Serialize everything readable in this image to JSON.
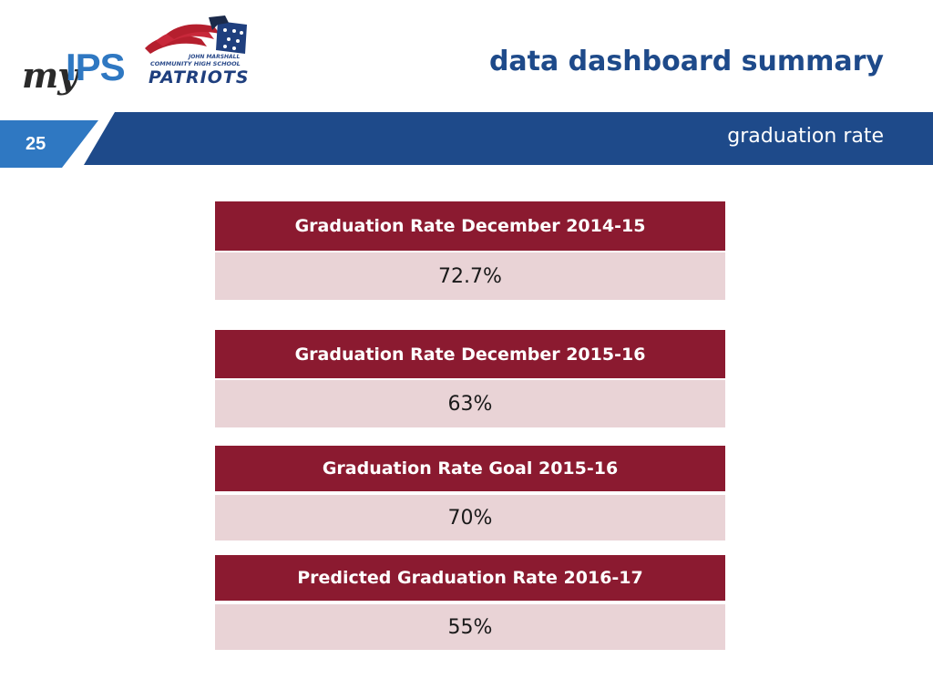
{
  "header": {
    "logo_my": "my",
    "logo_ips": "IPS",
    "school_logo": {
      "line1": "John Marshall",
      "line2": "Community High School",
      "line3": "PATRIOTS"
    },
    "title": "data dashboard summary"
  },
  "banner": {
    "slide_number": "25",
    "section_label": "graduation rate",
    "color": "#1e4a8a"
  },
  "stats": [
    {
      "label": "Graduation Rate December 2014-15",
      "value": "72.7%"
    },
    {
      "label": "Graduation Rate December 2015-16",
      "value": "63%"
    },
    {
      "label": "Graduation Rate Goal 2015-16",
      "value": "70%"
    },
    {
      "label": "Predicted Graduation Rate 2016-17",
      "value": "55%"
    }
  ],
  "colors": {
    "header_fill": "#8b1a30",
    "value_fill": "#e9d3d6",
    "title_text": "#1e4a8a",
    "logo_blue": "#2f78c2"
  },
  "icons": [
    "myips-logo",
    "patriots-flag-logo"
  ]
}
